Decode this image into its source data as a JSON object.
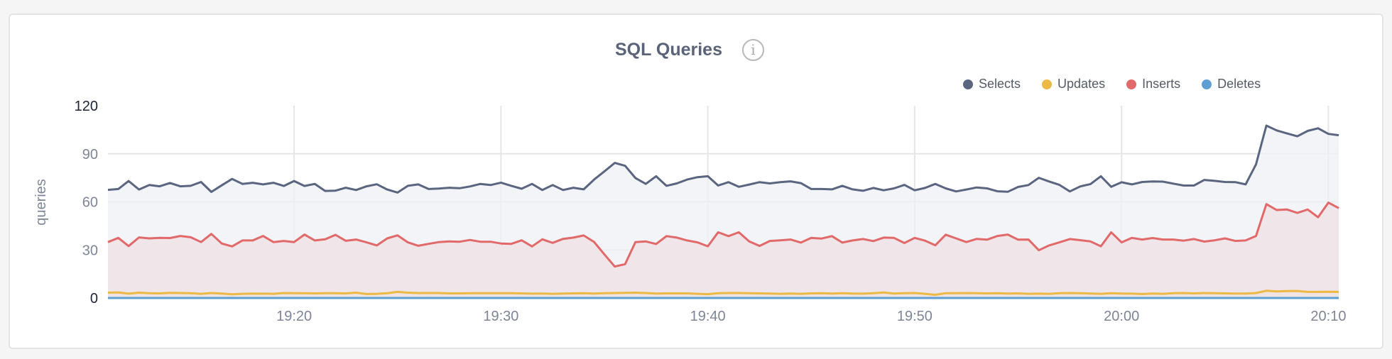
{
  "panel": {
    "title": "SQL Queries",
    "info_icon": "info-circle-icon"
  },
  "chart_data": {
    "type": "area",
    "title": "SQL Queries",
    "ylabel": "queries",
    "xlabel": "",
    "ylim": [
      0,
      120
    ],
    "yticks": [
      0,
      30,
      60,
      90,
      120
    ],
    "xticks": [
      "19:20",
      "19:30",
      "19:40",
      "19:50",
      "20:00",
      "20:10"
    ],
    "xlim": [
      "19:11:00",
      "20:10:30"
    ],
    "grid": true,
    "legend_position": "top-right",
    "x": [
      "19:11:00",
      "19:11:30",
      "19:12:00",
      "19:12:30",
      "19:13:00",
      "19:13:30",
      "19:14:00",
      "19:14:30",
      "19:15:00",
      "19:15:30",
      "19:16:00",
      "19:16:30",
      "19:17:00",
      "19:17:30",
      "19:18:00",
      "19:18:30",
      "19:19:00",
      "19:19:30",
      "19:20:00",
      "19:20:30",
      "19:21:00",
      "19:21:30",
      "19:22:00",
      "19:22:30",
      "19:23:00",
      "19:23:30",
      "19:24:00",
      "19:24:30",
      "19:25:00",
      "19:25:30",
      "19:26:00",
      "19:26:30",
      "19:27:00",
      "19:27:30",
      "19:28:00",
      "19:28:30",
      "19:29:00",
      "19:29:30",
      "19:30:00",
      "19:30:30",
      "19:31:00",
      "19:31:30",
      "19:32:00",
      "19:32:30",
      "19:33:00",
      "19:33:30",
      "19:34:00",
      "19:34:30",
      "19:35:00",
      "19:35:30",
      "19:36:00",
      "19:36:30",
      "19:37:00",
      "19:37:30",
      "19:38:00",
      "19:38:30",
      "19:39:00",
      "19:39:30",
      "19:40:00",
      "19:40:30",
      "19:41:00",
      "19:41:30",
      "19:42:00",
      "19:42:30",
      "19:43:00",
      "19:43:30",
      "19:44:00",
      "19:44:30",
      "19:45:00",
      "19:45:30",
      "19:46:00",
      "19:46:30",
      "19:47:00",
      "19:47:30",
      "19:48:00",
      "19:48:30",
      "19:49:00",
      "19:49:30",
      "19:50:00",
      "19:50:30",
      "19:51:00",
      "19:51:30",
      "19:52:00",
      "19:52:30",
      "19:53:00",
      "19:53:30",
      "19:54:00",
      "19:54:30",
      "19:55:00",
      "19:55:30",
      "19:56:00",
      "19:56:30",
      "19:57:00",
      "19:57:30",
      "19:58:00",
      "19:58:30",
      "19:59:00",
      "19:59:30",
      "20:00:00",
      "20:00:30",
      "20:01:00",
      "20:01:30",
      "20:02:00",
      "20:02:30",
      "20:03:00",
      "20:03:30",
      "20:04:00",
      "20:04:30",
      "20:05:00",
      "20:05:30",
      "20:06:00",
      "20:06:30",
      "20:07:00",
      "20:07:30",
      "20:08:00",
      "20:08:30",
      "20:09:00",
      "20:09:30",
      "20:10:00",
      "20:10:30"
    ],
    "series": [
      {
        "name": "Selects",
        "color": "#5a6580",
        "fill": "#eff0f4",
        "values": [
          67.5,
          68,
          73,
          67.7,
          70.5,
          69.7,
          71.8,
          69.7,
          70,
          72.4,
          66.2,
          70.3,
          74.3,
          71.2,
          71.9,
          70.9,
          71.9,
          69.9,
          73,
          69.9,
          71.2,
          66.8,
          67,
          68.8,
          67.4,
          69.7,
          71,
          67.7,
          65.8,
          70,
          70.9,
          68,
          68.3,
          68.8,
          68.5,
          69.6,
          71.2,
          70.5,
          72,
          70,
          68.2,
          71.2,
          67.4,
          70.5,
          67.4,
          68.8,
          67.8,
          73.9,
          79,
          84.3,
          82.5,
          74.9,
          71.2,
          76,
          70,
          71.5,
          73.9,
          75.4,
          76,
          70.2,
          72.3,
          69.4,
          70.8,
          72.3,
          71.5,
          72.3,
          72.8,
          71.7,
          68,
          68,
          67.8,
          70,
          67.8,
          66.9,
          68.7,
          67.2,
          68.4,
          70.6,
          67.2,
          68.7,
          71.2,
          68.4,
          66.5,
          67.7,
          69,
          68.4,
          66.6,
          66.3,
          69.3,
          70.5,
          75,
          72.7,
          70.6,
          66.5,
          69.6,
          71.1,
          76,
          69.4,
          72.2,
          70.9,
          72.4,
          72.7,
          72.6,
          71.4,
          70.2,
          70.2,
          73.7,
          73.1,
          72.4,
          72.3,
          70.9,
          83.4,
          107.6,
          104.6,
          102.7,
          100.9,
          104.3,
          105.9,
          102.4,
          101.6
        ]
      },
      {
        "name": "Updates",
        "color": "#ebb944",
        "fill": "#f3ead8",
        "values": [
          3.3,
          3.5,
          2.7,
          3.3,
          3.0,
          2.9,
          3.2,
          3.1,
          3.0,
          2.6,
          3.1,
          2.8,
          2.3,
          2.6,
          2.7,
          2.7,
          2.6,
          3.1,
          3.0,
          3.0,
          2.9,
          3.0,
          3.0,
          2.9,
          3.3,
          2.5,
          2.6,
          3.0,
          3.8,
          3.3,
          3.1,
          3.1,
          3.1,
          2.9,
          2.9,
          3.0,
          3.0,
          3.0,
          3.0,
          3.0,
          2.9,
          2.7,
          2.8,
          2.6,
          2.8,
          2.9,
          3.0,
          2.8,
          3.0,
          3.1,
          3.2,
          3.3,
          3.1,
          2.8,
          2.9,
          2.9,
          2.9,
          2.6,
          2.4,
          3.0,
          3.1,
          3.1,
          3.0,
          2.9,
          2.8,
          2.6,
          2.8,
          2.6,
          2.9,
          3.0,
          2.8,
          3.0,
          2.8,
          2.7,
          3.0,
          3.4,
          2.8,
          3.0,
          3.1,
          2.6,
          2.0,
          3.0,
          3.0,
          3.1,
          3.0,
          2.9,
          3.0,
          2.8,
          2.9,
          2.6,
          2.7,
          2.6,
          3.0,
          3.1,
          3.0,
          2.8,
          2.6,
          3.0,
          2.8,
          2.7,
          2.5,
          2.8,
          2.6,
          3.0,
          3.1,
          2.9,
          3.1,
          3.0,
          2.9,
          2.8,
          2.8,
          3.1,
          4.5,
          4.1,
          4.3,
          4.4,
          3.8,
          3.8,
          3.9,
          3.8
        ]
      },
      {
        "name": "Inserts",
        "color": "#e2696a",
        "fill": "#efe2e4",
        "values": [
          34.9,
          37.5,
          32.4,
          37.8,
          37.2,
          37.5,
          37.4,
          38.7,
          37.9,
          34.9,
          40,
          34,
          32.2,
          35.9,
          35.9,
          38.7,
          34.9,
          35.6,
          34.9,
          39.6,
          35.9,
          36.6,
          39.4,
          35.7,
          36.5,
          34.7,
          32.8,
          37.2,
          39.1,
          34.7,
          32.6,
          33.8,
          34.9,
          35.3,
          35.1,
          36.2,
          35.1,
          35.1,
          34,
          33.8,
          36,
          32.2,
          36.6,
          34.4,
          36.9,
          37.7,
          39,
          35,
          27.2,
          19.6,
          21.1,
          34.9,
          35.3,
          33.7,
          38.6,
          37.7,
          35.9,
          34.7,
          32.3,
          41,
          38.6,
          41,
          35.3,
          32.5,
          35.6,
          36,
          36.5,
          34.6,
          37.5,
          37.1,
          38.6,
          34.6,
          35.9,
          36.8,
          35.5,
          37.7,
          37.5,
          34.3,
          37.5,
          35.8,
          32.9,
          39.5,
          37.2,
          34.9,
          36.9,
          36.4,
          38.7,
          39.6,
          36.4,
          36.5,
          29.8,
          32.8,
          34.7,
          36.8,
          36.1,
          35.3,
          32.3,
          41,
          34.7,
          37.5,
          36.5,
          37.4,
          36.5,
          36.5,
          35.8,
          36.8,
          35.2,
          36,
          37.2,
          35.6,
          35.9,
          38.7,
          58.6,
          54.9,
          55.2,
          53.1,
          55.2,
          50.4,
          59.5,
          56.1
        ]
      },
      {
        "name": "Deletes",
        "color": "#5e9fd3",
        "fill": "#e4eef7",
        "values": [
          0,
          0,
          0,
          0,
          0,
          0,
          0,
          0,
          0,
          0,
          0,
          0,
          0,
          0,
          0,
          0,
          0,
          0,
          0,
          0,
          0,
          0,
          0,
          0,
          0,
          0,
          0,
          0,
          0,
          0,
          0,
          0,
          0,
          0,
          0,
          0,
          0,
          0,
          0,
          0,
          0,
          0,
          0,
          0,
          0,
          0,
          0,
          0,
          0,
          0,
          0,
          0,
          0,
          0,
          0,
          0,
          0,
          0,
          0,
          0,
          0,
          0,
          0,
          0,
          0,
          0,
          0,
          0,
          0,
          0,
          0,
          0,
          0,
          0,
          0,
          0,
          0,
          0,
          0,
          0,
          0,
          0,
          0,
          0,
          0,
          0,
          0,
          0,
          0,
          0,
          0,
          0,
          0,
          0,
          0,
          0,
          0,
          0,
          0,
          0,
          0,
          0,
          0,
          0,
          0,
          0,
          0,
          0,
          0,
          0,
          0,
          0,
          0,
          0,
          0,
          0,
          0,
          0,
          0,
          0
        ]
      }
    ]
  }
}
